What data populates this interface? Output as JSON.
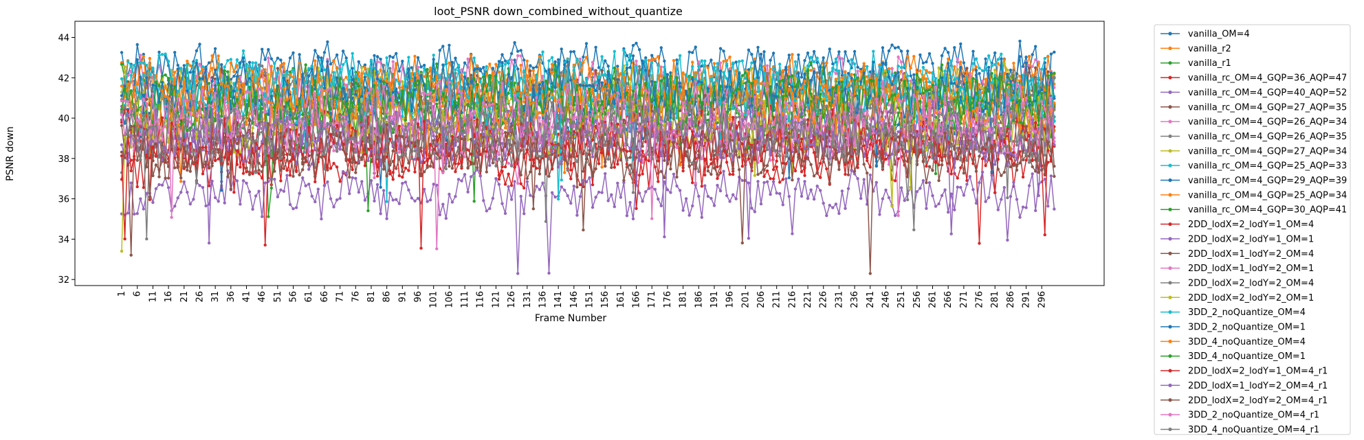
{
  "chart_data": {
    "type": "line",
    "title": "loot_PSNR down_combined_without_quantize",
    "xlabel": "Frame Number",
    "ylabel": "PSNR down",
    "x_range": [
      1,
      300
    ],
    "xlim": [
      -14,
      316
    ],
    "ylim": [
      31.7,
      44.8
    ],
    "x_tick_labels": [
      "1",
      "6",
      "11",
      "16",
      "21",
      "26",
      "31",
      "36",
      "41",
      "46",
      "51",
      "56",
      "61",
      "66",
      "71",
      "76",
      "81",
      "86",
      "91",
      "96",
      "101",
      "106",
      "111",
      "116",
      "121",
      "126",
      "131",
      "136",
      "141",
      "146",
      "151",
      "156",
      "161",
      "166",
      "171",
      "176",
      "181",
      "186",
      "191",
      "196",
      "201",
      "206",
      "211",
      "216",
      "221",
      "226",
      "231",
      "236",
      "241",
      "246",
      "251",
      "256",
      "261",
      "266",
      "271",
      "276",
      "281",
      "286",
      "291",
      "296"
    ],
    "y_ticks": [
      32,
      34,
      36,
      38,
      40,
      42,
      44
    ],
    "grid": false,
    "legend_position": "outside right",
    "marker": "dot",
    "series": [
      {
        "name": "vanilla_OM=4",
        "color": "#1f77b4",
        "level": 42.6,
        "amp": 0.8
      },
      {
        "name": "vanilla_r2",
        "color": "#ff7f0e",
        "level": 41.6,
        "amp": 0.9
      },
      {
        "name": "vanilla_r1",
        "color": "#2ca02c",
        "level": 41.2,
        "amp": 1.0
      },
      {
        "name": "vanilla_rc_OM=4_GQP=36_AQP=47",
        "color": "#d62728",
        "level": 38.0,
        "amp": 1.0
      },
      {
        "name": "vanilla_rc_OM=4_GQP=40_AQP=52",
        "color": "#9467bd",
        "level": 36.2,
        "amp": 0.8
      },
      {
        "name": "vanilla_rc_OM=4_GQP=27_AQP=35",
        "color": "#8c564b",
        "level": 41.0,
        "amp": 1.0
      },
      {
        "name": "vanilla_rc_OM=4_GQP=26_AQP=34",
        "color": "#e377c2",
        "level": 41.6,
        "amp": 1.0
      },
      {
        "name": "vanilla_rc_OM=4_GQP=26_AQP=35",
        "color": "#7f7f7f",
        "level": 41.1,
        "amp": 1.0
      },
      {
        "name": "vanilla_rc_OM=4_GQP=27_AQP=34",
        "color": "#bcbd22",
        "level": 41.2,
        "amp": 1.0
      },
      {
        "name": "vanilla_rc_OM=4_GQP=25_AQP=33",
        "color": "#17becf",
        "level": 41.9,
        "amp": 1.0
      },
      {
        "name": "vanilla_rc_OM=4_GQP=29_AQP=39",
        "color": "#1f77b4",
        "level": 40.4,
        "amp": 1.0
      },
      {
        "name": "vanilla_rc_OM=4_GQP=25_AQP=34",
        "color": "#ff7f0e",
        "level": 41.7,
        "amp": 1.0
      },
      {
        "name": "vanilla_rc_OM=4_GQP=30_AQP=41",
        "color": "#2ca02c",
        "level": 40.0,
        "amp": 1.0
      },
      {
        "name": "2DD_lodX=2_lodY=1_OM=4",
        "color": "#d62728",
        "level": 39.0,
        "amp": 1.1
      },
      {
        "name": "2DD_lodX=2_lodY=1_OM=1",
        "color": "#9467bd",
        "level": 39.5,
        "amp": 1.0
      },
      {
        "name": "2DD_lodX=1_lodY=2_OM=4",
        "color": "#8c564b",
        "level": 38.5,
        "amp": 1.0
      },
      {
        "name": "2DD_lodX=1_lodY=2_OM=1",
        "color": "#e377c2",
        "level": 39.2,
        "amp": 1.0
      },
      {
        "name": "2DD_lodX=2_lodY=2_OM=4",
        "color": "#7f7f7f",
        "level": 38.8,
        "amp": 1.0
      },
      {
        "name": "2DD_lodX=2_lodY=2_OM=1",
        "color": "#bcbd22",
        "level": 39.6,
        "amp": 1.0
      },
      {
        "name": "3DD_2_noQuantize_OM=4",
        "color": "#17becf",
        "level": 41.3,
        "amp": 1.1
      },
      {
        "name": "3DD_2_noQuantize_OM=1",
        "color": "#1f77b4",
        "level": 41.5,
        "amp": 1.1
      },
      {
        "name": "3DD_4_noQuantize_OM=4",
        "color": "#ff7f0e",
        "level": 40.6,
        "amp": 1.1
      },
      {
        "name": "3DD_4_noQuantize_OM=1",
        "color": "#2ca02c",
        "level": 40.8,
        "amp": 1.1
      },
      {
        "name": "2DD_lodX=2_lodY=1_OM=4_r1",
        "color": "#d62728",
        "level": 38.6,
        "amp": 1.0
      },
      {
        "name": "2DD_lodX=1_lodY=2_OM=4_r1",
        "color": "#9467bd",
        "level": 39.0,
        "amp": 1.0
      },
      {
        "name": "2DD_lodX=2_lodY=2_OM=4_r1",
        "color": "#8c564b",
        "level": 38.2,
        "amp": 1.0
      },
      {
        "name": "3DD_2_noQuantize_OM=4_r1",
        "color": "#e377c2",
        "level": 40.2,
        "amp": 1.1
      },
      {
        "name": "3DD_4_noQuantize_OM=4_r1",
        "color": "#7f7f7f",
        "level": 39.4,
        "amp": 1.1
      }
    ]
  }
}
